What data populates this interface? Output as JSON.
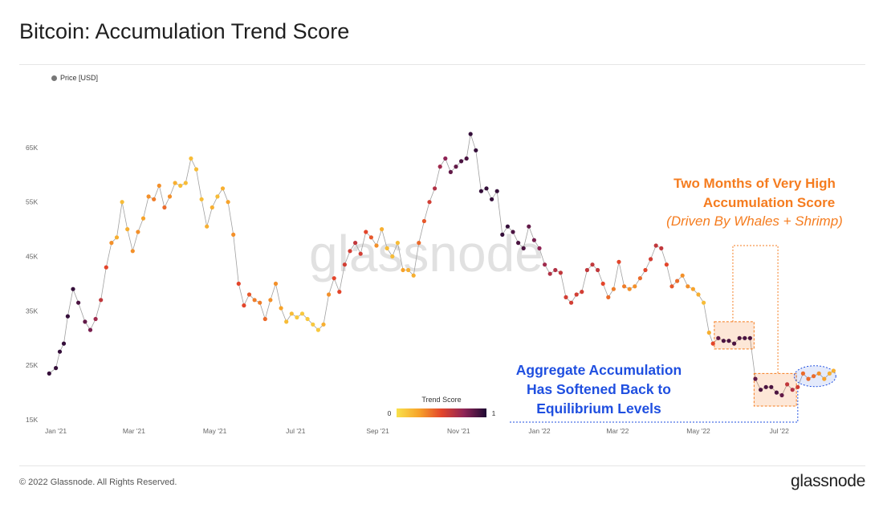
{
  "title": "Bitcoin: Accumulation Trend Score",
  "legend": {
    "series_label": "Price [USD]"
  },
  "watermark": "glassnode",
  "footer": {
    "copyright": "© 2022 Glassnode. All Rights Reserved.",
    "brand": "glassnode"
  },
  "colors": {
    "low": "#f8e14b",
    "mid_low": "#f7a32a",
    "mid": "#f0632a",
    "mid_high": "#c2304a",
    "high": "#6a1d58",
    "max": "#1e0a33",
    "line": "#9a9a9a"
  },
  "chart_data": {
    "type": "scatter",
    "series_name": "Price [USD]",
    "ylim": [
      15000,
      70000
    ],
    "y_ticks": [
      15000,
      25000,
      35000,
      45000,
      55000,
      65000
    ],
    "y_tick_labels": [
      "15K",
      "25K",
      "35K",
      "45K",
      "55K",
      "65K"
    ],
    "x_range": [
      "2020-12-25",
      "2022-08-15"
    ],
    "x_tick_labels": [
      {
        "date": "2021-01-01",
        "label": "Jan '21"
      },
      {
        "date": "2021-03-01",
        "label": "Mar '21"
      },
      {
        "date": "2021-05-01",
        "label": "May '21"
      },
      {
        "date": "2021-07-01",
        "label": "Jul '21"
      },
      {
        "date": "2021-09-01",
        "label": "Sep '21"
      },
      {
        "date": "2021-11-01",
        "label": "Nov '21"
      },
      {
        "date": "2022-01-01",
        "label": "Jan '22"
      },
      {
        "date": "2022-03-01",
        "label": "Mar '22"
      },
      {
        "date": "2022-05-01",
        "label": "May '22"
      },
      {
        "date": "2022-07-01",
        "label": "Jul '22"
      }
    ],
    "colorbar": {
      "title": "Trend Score",
      "min_label": "0",
      "max_label": "1"
    },
    "points": [
      [
        "2020-12-27",
        23500,
        0.95
      ],
      [
        "2021-01-01",
        24500,
        0.95
      ],
      [
        "2021-01-04",
        27500,
        0.95
      ],
      [
        "2021-01-07",
        29000,
        0.95
      ],
      [
        "2021-01-10",
        34000,
        0.95
      ],
      [
        "2021-01-14",
        39000,
        0.95
      ],
      [
        "2021-01-18",
        36500,
        0.9
      ],
      [
        "2021-01-23",
        33000,
        0.85
      ],
      [
        "2021-01-27",
        31500,
        0.8
      ],
      [
        "2021-01-31",
        33500,
        0.7
      ],
      [
        "2021-02-04",
        37000,
        0.6
      ],
      [
        "2021-02-08",
        43000,
        0.5
      ],
      [
        "2021-02-12",
        47500,
        0.3
      ],
      [
        "2021-02-16",
        48500,
        0.2
      ],
      [
        "2021-02-20",
        55000,
        0.15
      ],
      [
        "2021-02-24",
        50000,
        0.2
      ],
      [
        "2021-02-28",
        46000,
        0.3
      ],
      [
        "2021-03-04",
        49500,
        0.3
      ],
      [
        "2021-03-08",
        52000,
        0.25
      ],
      [
        "2021-03-12",
        56000,
        0.3
      ],
      [
        "2021-03-16",
        55500,
        0.35
      ],
      [
        "2021-03-20",
        58000,
        0.3
      ],
      [
        "2021-03-24",
        54000,
        0.4
      ],
      [
        "2021-03-28",
        56000,
        0.3
      ],
      [
        "2021-04-01",
        58500,
        0.2
      ],
      [
        "2021-04-05",
        58000,
        0.15
      ],
      [
        "2021-04-09",
        58500,
        0.15
      ],
      [
        "2021-04-13",
        63000,
        0.15
      ],
      [
        "2021-04-17",
        61000,
        0.15
      ],
      [
        "2021-04-21",
        55500,
        0.15
      ],
      [
        "2021-04-25",
        50500,
        0.2
      ],
      [
        "2021-04-29",
        54000,
        0.2
      ],
      [
        "2021-05-03",
        56000,
        0.15
      ],
      [
        "2021-05-07",
        57500,
        0.2
      ],
      [
        "2021-05-11",
        55000,
        0.25
      ],
      [
        "2021-05-15",
        49000,
        0.3
      ],
      [
        "2021-05-19",
        40000,
        0.5
      ],
      [
        "2021-05-23",
        36000,
        0.5
      ],
      [
        "2021-05-27",
        38000,
        0.45
      ],
      [
        "2021-05-31",
        37000,
        0.35
      ],
      [
        "2021-06-04",
        36500,
        0.35
      ],
      [
        "2021-06-08",
        33500,
        0.4
      ],
      [
        "2021-06-12",
        37000,
        0.3
      ],
      [
        "2021-06-16",
        40000,
        0.3
      ],
      [
        "2021-06-20",
        35500,
        0.25
      ],
      [
        "2021-06-24",
        33000,
        0.15
      ],
      [
        "2021-06-28",
        34500,
        0.15
      ],
      [
        "2021-07-02",
        33800,
        0.1
      ],
      [
        "2021-07-06",
        34500,
        0.1
      ],
      [
        "2021-07-10",
        33500,
        0.1
      ],
      [
        "2021-07-14",
        32500,
        0.1
      ],
      [
        "2021-07-18",
        31500,
        0.1
      ],
      [
        "2021-07-22",
        32500,
        0.2
      ],
      [
        "2021-07-26",
        38000,
        0.3
      ],
      [
        "2021-07-30",
        41000,
        0.5
      ],
      [
        "2021-08-03",
        38500,
        0.5
      ],
      [
        "2021-08-07",
        43500,
        0.55
      ],
      [
        "2021-08-11",
        46000,
        0.55
      ],
      [
        "2021-08-15",
        47500,
        0.6
      ],
      [
        "2021-08-19",
        45500,
        0.55
      ],
      [
        "2021-08-23",
        49500,
        0.5
      ],
      [
        "2021-08-27",
        48500,
        0.45
      ],
      [
        "2021-08-31",
        47000,
        0.3
      ],
      [
        "2021-09-04",
        50000,
        0.2
      ],
      [
        "2021-09-08",
        46500,
        0.15
      ],
      [
        "2021-09-12",
        45000,
        0.15
      ],
      [
        "2021-09-16",
        47500,
        0.15
      ],
      [
        "2021-09-20",
        42500,
        0.25
      ],
      [
        "2021-09-24",
        42500,
        0.2
      ],
      [
        "2021-09-28",
        41500,
        0.2
      ],
      [
        "2021-10-02",
        47500,
        0.4
      ],
      [
        "2021-10-06",
        51500,
        0.45
      ],
      [
        "2021-10-10",
        55000,
        0.55
      ],
      [
        "2021-10-14",
        57500,
        0.65
      ],
      [
        "2021-10-18",
        61500,
        0.7
      ],
      [
        "2021-10-22",
        63000,
        0.75
      ],
      [
        "2021-10-26",
        60500,
        0.85
      ],
      [
        "2021-10-30",
        61500,
        0.85
      ],
      [
        "2021-11-03",
        62500,
        0.9
      ],
      [
        "2021-11-07",
        63000,
        0.9
      ],
      [
        "2021-11-10",
        67500,
        0.95
      ],
      [
        "2021-11-14",
        64500,
        0.95
      ],
      [
        "2021-11-18",
        57000,
        0.95
      ],
      [
        "2021-11-22",
        57500,
        0.95
      ],
      [
        "2021-11-26",
        55500,
        0.95
      ],
      [
        "2021-11-30",
        57000,
        0.95
      ],
      [
        "2021-12-04",
        49000,
        0.95
      ],
      [
        "2021-12-08",
        50500,
        0.95
      ],
      [
        "2021-12-12",
        49500,
        0.9
      ],
      [
        "2021-12-16",
        47500,
        0.9
      ],
      [
        "2021-12-20",
        46500,
        0.9
      ],
      [
        "2021-12-24",
        50500,
        0.85
      ],
      [
        "2021-12-28",
        48000,
        0.8
      ],
      [
        "2022-01-01",
        46500,
        0.75
      ],
      [
        "2022-01-05",
        43500,
        0.7
      ],
      [
        "2022-01-09",
        41800,
        0.65
      ],
      [
        "2022-01-13",
        42500,
        0.65
      ],
      [
        "2022-01-17",
        42000,
        0.6
      ],
      [
        "2022-01-21",
        37500,
        0.55
      ],
      [
        "2022-01-25",
        36500,
        0.55
      ],
      [
        "2022-01-29",
        38000,
        0.55
      ],
      [
        "2022-02-02",
        38500,
        0.55
      ],
      [
        "2022-02-06",
        42500,
        0.6
      ],
      [
        "2022-02-10",
        43500,
        0.6
      ],
      [
        "2022-02-14",
        42500,
        0.6
      ],
      [
        "2022-02-18",
        40000,
        0.5
      ],
      [
        "2022-02-22",
        37500,
        0.4
      ],
      [
        "2022-02-26",
        39000,
        0.35
      ],
      [
        "2022-03-02",
        44000,
        0.5
      ],
      [
        "2022-03-06",
        39500,
        0.35
      ],
      [
        "2022-03-10",
        39000,
        0.3
      ],
      [
        "2022-03-14",
        39500,
        0.3
      ],
      [
        "2022-03-18",
        41000,
        0.4
      ],
      [
        "2022-03-22",
        42500,
        0.5
      ],
      [
        "2022-03-26",
        44500,
        0.55
      ],
      [
        "2022-03-30",
        47000,
        0.6
      ],
      [
        "2022-04-03",
        46500,
        0.6
      ],
      [
        "2022-04-07",
        43500,
        0.5
      ],
      [
        "2022-04-11",
        39500,
        0.45
      ],
      [
        "2022-04-15",
        40500,
        0.4
      ],
      [
        "2022-04-19",
        41500,
        0.3
      ],
      [
        "2022-04-23",
        39500,
        0.3
      ],
      [
        "2022-04-27",
        39000,
        0.25
      ],
      [
        "2022-05-01",
        38000,
        0.2
      ],
      [
        "2022-05-05",
        36500,
        0.15
      ],
      [
        "2022-05-09",
        31000,
        0.2
      ],
      [
        "2022-05-12",
        29000,
        0.5
      ],
      [
        "2022-05-16",
        30000,
        0.85
      ],
      [
        "2022-05-20",
        29500,
        0.9
      ],
      [
        "2022-05-24",
        29500,
        0.9
      ],
      [
        "2022-05-28",
        29000,
        0.9
      ],
      [
        "2022-06-01",
        30000,
        0.9
      ],
      [
        "2022-06-05",
        30000,
        0.9
      ],
      [
        "2022-06-09",
        30000,
        0.9
      ],
      [
        "2022-06-13",
        22500,
        0.85
      ],
      [
        "2022-06-17",
        20500,
        0.9
      ],
      [
        "2022-06-21",
        21000,
        0.9
      ],
      [
        "2022-06-25",
        21000,
        0.9
      ],
      [
        "2022-06-29",
        20000,
        0.9
      ],
      [
        "2022-07-03",
        19500,
        0.85
      ],
      [
        "2022-07-07",
        21500,
        0.6
      ],
      [
        "2022-07-11",
        20500,
        0.65
      ],
      [
        "2022-07-15",
        21000,
        0.55
      ],
      [
        "2022-07-19",
        23500,
        0.4
      ],
      [
        "2022-07-23",
        22500,
        0.4
      ],
      [
        "2022-07-27",
        23000,
        0.4
      ],
      [
        "2022-07-31",
        23500,
        0.3
      ],
      [
        "2022-08-04",
        22500,
        0.25
      ],
      [
        "2022-08-08",
        23500,
        0.2
      ],
      [
        "2022-08-11",
        24000,
        0.2
      ]
    ],
    "annotations": [
      {
        "lines": [
          "Two Months of Very High",
          "Accumulation Score",
          "(Driven By Whales + Shrimp)"
        ],
        "color": "#f57c1f"
      },
      {
        "lines": [
          "Aggregate Accumulation",
          "Has Softened Back to",
          "Equilibrium Levels"
        ],
        "color": "#1f4fe0"
      }
    ]
  }
}
